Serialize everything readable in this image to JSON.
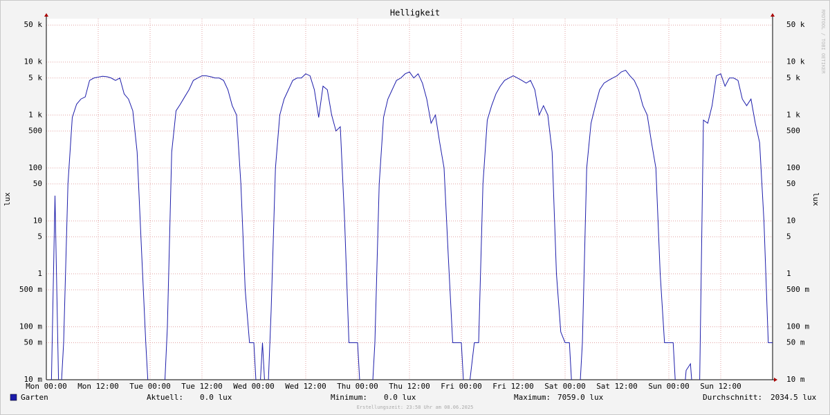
{
  "chart_data": {
    "type": "line",
    "title": "Helligkeit",
    "y_label": "lux",
    "watermark": "RRDTOOL / TOBI OETIKER",
    "scale": "log",
    "grid": true,
    "xlim": [
      0,
      168
    ],
    "xticks": [
      {
        "value": 0,
        "label": "Mon 00:00"
      },
      {
        "value": 12,
        "label": "Mon 12:00"
      },
      {
        "value": 24,
        "label": "Tue 00:00"
      },
      {
        "value": 36,
        "label": "Tue 12:00"
      },
      {
        "value": 48,
        "label": "Wed 00:00"
      },
      {
        "value": 60,
        "label": "Wed 12:00"
      },
      {
        "value": 72,
        "label": "Thu 00:00"
      },
      {
        "value": 84,
        "label": "Thu 12:00"
      },
      {
        "value": 96,
        "label": "Fri 00:00"
      },
      {
        "value": 108,
        "label": "Fri 12:00"
      },
      {
        "value": 120,
        "label": "Sat 00:00"
      },
      {
        "value": 132,
        "label": "Sat 12:00"
      },
      {
        "value": 144,
        "label": "Sun 00:00"
      },
      {
        "value": 156,
        "label": "Sun 12:00"
      }
    ],
    "ylim": [
      0.01,
      66000
    ],
    "yticks": [
      {
        "value": 50000,
        "label": "50 k"
      },
      {
        "value": 10000,
        "label": "10 k"
      },
      {
        "value": 5000,
        "label": "5 k"
      },
      {
        "value": 1000,
        "label": "1 k"
      },
      500,
      100,
      50,
      10,
      5,
      1,
      {
        "value": 0.5,
        "label": "500 m"
      },
      {
        "value": 0.1,
        "label": "100 m"
      },
      {
        "value": 0.05,
        "label": "50 m"
      },
      {
        "value": 0.01,
        "label": "10 m"
      }
    ],
    "x": [
      0,
      1,
      2,
      3,
      4,
      5,
      6,
      7,
      8,
      9,
      10,
      11,
      12,
      13,
      14,
      15,
      16,
      17,
      18,
      19,
      20,
      21,
      22,
      23,
      24,
      25,
      26,
      27,
      28,
      29,
      30,
      31,
      32,
      33,
      34,
      35,
      36,
      37,
      38,
      39,
      40,
      41,
      42,
      43,
      44,
      45,
      46,
      47,
      48,
      49,
      50,
      51,
      52,
      53,
      54,
      55,
      56,
      57,
      58,
      59,
      60,
      61,
      62,
      63,
      64,
      65,
      66,
      67,
      68,
      69,
      70,
      71,
      72,
      73,
      74,
      75,
      76,
      77,
      78,
      79,
      80,
      81,
      82,
      83,
      84,
      85,
      86,
      87,
      88,
      89,
      90,
      91,
      92,
      93,
      94,
      95,
      96,
      97,
      98,
      99,
      100,
      101,
      102,
      103,
      104,
      105,
      106,
      107,
      108,
      109,
      110,
      111,
      112,
      113,
      114,
      115,
      116,
      117,
      118,
      119,
      120,
      121,
      122,
      123,
      124,
      125,
      126,
      127,
      128,
      129,
      130,
      131,
      132,
      133,
      134,
      135,
      136,
      137,
      138,
      139,
      140,
      141,
      142,
      143,
      144,
      145,
      146,
      147,
      148,
      149,
      150,
      151,
      152,
      153,
      154,
      155,
      156,
      157,
      158,
      159,
      160,
      161,
      162,
      163,
      164,
      165,
      166,
      167,
      168
    ],
    "series": [
      {
        "name": "Garten",
        "color": "#1c1caa",
        "values": [
          0,
          0,
          30,
          0,
          0.05,
          50,
          900,
          1600,
          2000,
          2200,
          4500,
          5000,
          5200,
          5400,
          5300,
          5000,
          4500,
          5000,
          2500,
          2000,
          1200,
          200,
          3,
          0.05,
          0,
          0,
          0,
          0,
          0.1,
          200,
          1200,
          1600,
          2200,
          3000,
          4500,
          5000,
          5500,
          5500,
          5300,
          5000,
          5000,
          4500,
          3000,
          1500,
          1000,
          50,
          0.5,
          0.05,
          0.05,
          0,
          0.05,
          0,
          0.2,
          100,
          1000,
          2000,
          3000,
          4500,
          5000,
          5000,
          6000,
          5500,
          3000,
          900,
          3500,
          3000,
          1000,
          500,
          600,
          10,
          0.05,
          0.05,
          0.05,
          0,
          0,
          0,
          0.05,
          50,
          900,
          2000,
          3000,
          4500,
          5000,
          6000,
          6500,
          5000,
          6000,
          4000,
          2000,
          700,
          1000,
          300,
          100,
          2,
          0.05,
          0.05,
          0.05,
          0,
          0.01,
          0.05,
          0.05,
          50,
          800,
          1500,
          2500,
          3500,
          4500,
          5000,
          5500,
          5000,
          4500,
          4000,
          4500,
          3000,
          1000,
          1500,
          1000,
          200,
          1,
          0.08,
          0.05,
          0.05,
          0,
          0,
          0.05,
          100,
          700,
          1500,
          3000,
          4000,
          4500,
          5000,
          5500,
          6500,
          7000,
          5500,
          4500,
          3000,
          1500,
          1000,
          300,
          100,
          1,
          0.05,
          0.05,
          0.05,
          0,
          0,
          0.015,
          0.02,
          0,
          0,
          800,
          700,
          1500,
          5500,
          6000,
          3500,
          5000,
          5000,
          4500,
          2000,
          1500,
          2000,
          700,
          300,
          10,
          0.05,
          0.05
        ]
      }
    ],
    "legend": {
      "stats": [
        {
          "label": "Aktuell:",
          "value": "0.0 lux"
        },
        {
          "label": "Minimum:",
          "value": "0.0 lux"
        },
        {
          "label": "Maximum:",
          "value": "7059.0 lux"
        },
        {
          "label": "Durchschnitt:",
          "value": "2034.5 lux"
        }
      ]
    },
    "footer": "Erstellungszeit: 23:58 Uhr am 08.06.2025"
  }
}
